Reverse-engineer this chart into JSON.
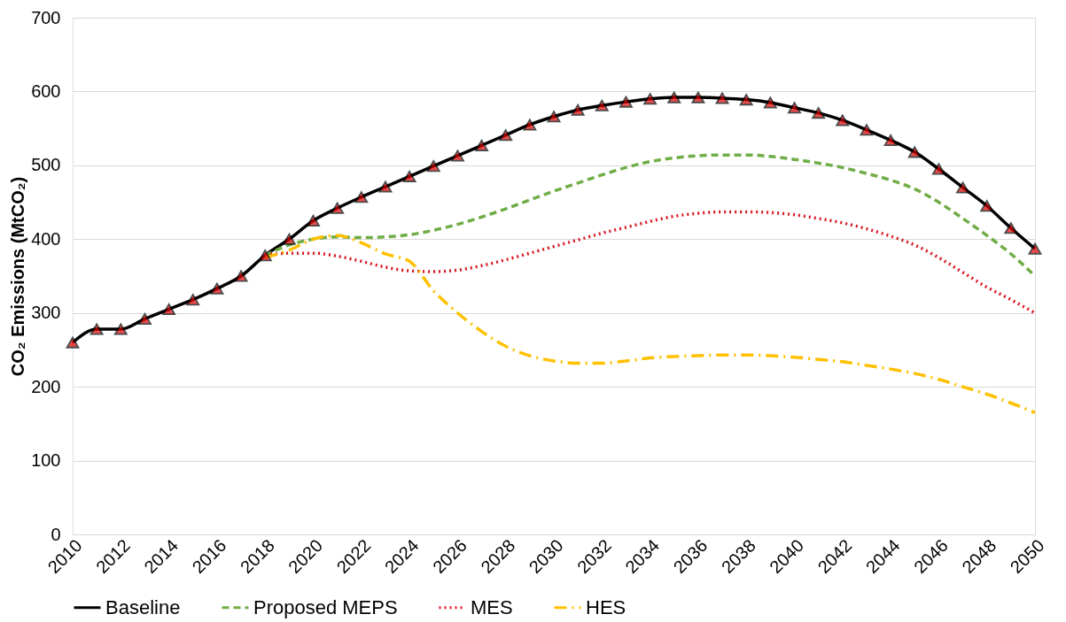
{
  "chart_data": {
    "type": "line",
    "ylabel": "CO₂ Emissions (MtCO₂)",
    "xlim": [
      2010,
      2050
    ],
    "xticks": [
      2010,
      2012,
      2014,
      2016,
      2018,
      2020,
      2022,
      2024,
      2026,
      2028,
      2030,
      2032,
      2034,
      2036,
      2038,
      2040,
      2042,
      2044,
      2046,
      2048,
      2050
    ],
    "ylim": [
      0,
      700
    ],
    "yticks": [
      0,
      100,
      200,
      300,
      400,
      500,
      600,
      700
    ],
    "grid": "y",
    "legend": "bottom",
    "series": [
      {
        "name": "Baseline",
        "color": "#000000",
        "marker": "triangle",
        "line_style": "solid",
        "x": [
          2010,
          2011,
          2012,
          2013,
          2014,
          2015,
          2016,
          2017,
          2018,
          2019,
          2020,
          2021,
          2022,
          2023,
          2024,
          2025,
          2026,
          2027,
          2028,
          2029,
          2030,
          2031,
          2032,
          2033,
          2034,
          2035,
          2036,
          2037,
          2038,
          2039,
          2040,
          2041,
          2042,
          2043,
          2044,
          2045,
          2046,
          2047,
          2048,
          2049,
          2050
        ],
        "values": [
          260,
          278,
          278,
          292,
          305,
          318,
          333,
          350,
          378,
          400,
          425,
          442,
          457,
          471,
          485,
          499,
          513,
          527,
          541,
          555,
          566,
          575,
          581,
          586,
          590,
          592,
          592,
          591,
          589,
          585,
          578,
          571,
          561,
          548,
          534,
          518,
          495,
          470,
          445,
          415,
          387
        ]
      },
      {
        "name": "Proposed MEPS",
        "color": "#70ad47",
        "marker": "none",
        "line_style": "dashed",
        "x": [
          2018,
          2019,
          2020,
          2021,
          2022,
          2023,
          2024,
          2025,
          2026,
          2027,
          2028,
          2029,
          2030,
          2031,
          2032,
          2033,
          2034,
          2035,
          2036,
          2037,
          2038,
          2039,
          2040,
          2041,
          2042,
          2043,
          2044,
          2045,
          2046,
          2047,
          2048,
          2049,
          2050
        ],
        "values": [
          378,
          392,
          400,
          403,
          402,
          403,
          406,
          412,
          420,
          430,
          441,
          453,
          465,
          476,
          487,
          497,
          505,
          510,
          513,
          514,
          514,
          512,
          508,
          503,
          497,
          489,
          480,
          468,
          450,
          428,
          405,
          380,
          350
        ]
      },
      {
        "name": "MES",
        "color": "#d9151e",
        "marker": "none",
        "line_style": "dotted",
        "x": [
          2018,
          2019,
          2020,
          2021,
          2022,
          2023,
          2024,
          2025,
          2026,
          2027,
          2028,
          2029,
          2030,
          2031,
          2032,
          2033,
          2034,
          2035,
          2036,
          2037,
          2038,
          2039,
          2040,
          2041,
          2042,
          2043,
          2044,
          2045,
          2046,
          2047,
          2048,
          2049,
          2050
        ],
        "values": [
          378,
          381,
          381,
          377,
          370,
          362,
          357,
          356,
          358,
          364,
          372,
          381,
          390,
          399,
          408,
          416,
          424,
          431,
          435,
          437,
          437,
          436,
          433,
          428,
          422,
          414,
          404,
          392,
          375,
          355,
          335,
          318,
          300
        ]
      },
      {
        "name": "HES",
        "color": "#ffc000",
        "marker": "none",
        "line_style": "dashdot",
        "x": [
          2018,
          2019,
          2020,
          2021,
          2022,
          2023,
          2024,
          2025,
          2026,
          2027,
          2028,
          2029,
          2030,
          2031,
          2032,
          2033,
          2034,
          2035,
          2036,
          2037,
          2038,
          2039,
          2040,
          2041,
          2042,
          2043,
          2044,
          2045,
          2046,
          2047,
          2048,
          2049,
          2050
        ],
        "values": [
          375,
          385,
          400,
          405,
          395,
          380,
          370,
          330,
          300,
          275,
          255,
          242,
          235,
          232,
          232,
          235,
          239,
          241,
          242,
          243,
          243,
          242,
          240,
          237,
          234,
          229,
          224,
          218,
          210,
          200,
          190,
          178,
          165
        ]
      }
    ]
  }
}
